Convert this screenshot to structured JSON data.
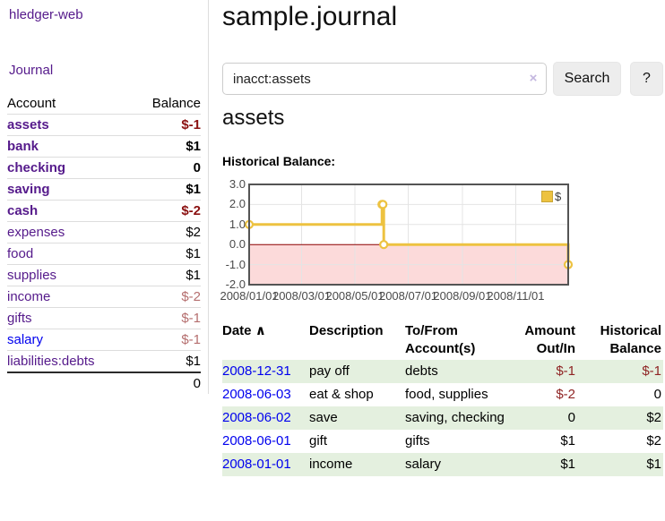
{
  "app": {
    "title": "hledger-web"
  },
  "sidebar": {
    "journal_link": "Journal",
    "accounts_table": {
      "headers": {
        "account": "Account",
        "balance": "Balance"
      },
      "rows": [
        {
          "name": "assets",
          "indent": 1,
          "bold": true,
          "balance": "$-1",
          "negative": true
        },
        {
          "name": "bank",
          "indent": 2,
          "bold": true,
          "balance": "$1",
          "negative": false
        },
        {
          "name": "checking",
          "indent": 3,
          "bold": true,
          "balance": "0",
          "negative": false
        },
        {
          "name": "saving",
          "indent": 3,
          "bold": true,
          "balance": "$1",
          "negative": false
        },
        {
          "name": "cash",
          "indent": 2,
          "bold": true,
          "balance": "$-2",
          "negative": true
        },
        {
          "name": "expenses",
          "indent": 1,
          "bold": false,
          "balance": "$2",
          "negative": false
        },
        {
          "name": "food",
          "indent": 2,
          "bold": false,
          "balance": "$1",
          "negative": false
        },
        {
          "name": "supplies",
          "indent": 2,
          "bold": false,
          "balance": "$1",
          "negative": false
        },
        {
          "name": "income",
          "indent": 1,
          "bold": false,
          "balance": "$-2",
          "negative": true
        },
        {
          "name": "gifts",
          "indent": 2,
          "bold": false,
          "balance": "$-1",
          "negative": true
        },
        {
          "name": "salary",
          "indent": 2,
          "bold": false,
          "balance": "$-1",
          "negative": true,
          "link_style": "unvisited"
        },
        {
          "name": "liabilities:debts",
          "indent": 1,
          "bold": false,
          "balance": "$1",
          "negative": false
        }
      ],
      "total": "0"
    }
  },
  "main": {
    "title": "sample.journal",
    "search": {
      "value": "inacct:assets",
      "clear_icon": "×",
      "button_label": "Search",
      "help_label": "?"
    },
    "account_heading": "assets",
    "chart_label": "Historical Balance:",
    "register": {
      "headers": {
        "date": "Date",
        "sort_indicator": "∧",
        "description": "Description",
        "tofrom_line1": "To/From",
        "tofrom_line2": "Account(s)",
        "amount_line1": "Amount",
        "amount_line2": "Out/In",
        "hist_line1": "Historical",
        "hist_line2": "Balance"
      },
      "rows": [
        {
          "date": "2008-12-31",
          "description": "pay off",
          "accounts": "debts",
          "amount": "$-1",
          "amount_negative": true,
          "balance": "$-1",
          "balance_negative": true
        },
        {
          "date": "2008-06-03",
          "description": "eat & shop",
          "accounts": "food, supplies",
          "amount": "$-2",
          "amount_negative": true,
          "balance": "0",
          "balance_negative": false
        },
        {
          "date": "2008-06-02",
          "description": "save",
          "accounts": "saving, checking",
          "amount": "0",
          "amount_negative": false,
          "balance": "$2",
          "balance_negative": false
        },
        {
          "date": "2008-06-01",
          "description": "gift",
          "accounts": "gifts",
          "amount": "$1",
          "amount_negative": false,
          "balance": "$2",
          "balance_negative": false
        },
        {
          "date": "2008-01-01",
          "description": "income",
          "accounts": "salary",
          "amount": "$1",
          "amount_negative": false,
          "balance": "$1",
          "balance_negative": false
        }
      ]
    }
  },
  "chart_data": {
    "type": "line",
    "step": true,
    "title": "Historical Balance:",
    "legend": "$",
    "legend_position": "top-right",
    "series": [
      {
        "name": "$",
        "color": "#edc240",
        "points": [
          [
            "2008-01-01",
            1
          ],
          [
            "2008-06-01",
            2
          ],
          [
            "2008-06-02",
            2
          ],
          [
            "2008-06-03",
            0
          ],
          [
            "2008-12-31",
            -1
          ]
        ]
      }
    ],
    "xrange": [
      "2008-01-01",
      "2008-12-31"
    ],
    "ylim": [
      -2,
      3
    ],
    "yticks": [
      {
        "value": 3,
        "label": "3.0"
      },
      {
        "value": 2,
        "label": "2.0"
      },
      {
        "value": 1,
        "label": "1.0"
      },
      {
        "value": 0,
        "label": "0.0"
      },
      {
        "value": -1,
        "label": "-1.0"
      },
      {
        "value": -2,
        "label": "-2.0"
      }
    ],
    "xticks": [
      {
        "date": "2008-01-01",
        "label": "2008/01/01"
      },
      {
        "date": "2008-03-01",
        "label": "2008/03/01"
      },
      {
        "date": "2008-05-01",
        "label": "2008/05/01"
      },
      {
        "date": "2008-07-01",
        "label": "2008/07/01"
      },
      {
        "date": "2008-09-01",
        "label": "2008/09/01"
      },
      {
        "date": "2008-11-01",
        "label": "2008/11/01"
      }
    ],
    "grid": true,
    "gridline_color": "#e4e4e4",
    "border_color": "#545454",
    "zero_line_color": "#8b0000",
    "negative_region_color": "#fcdada"
  }
}
